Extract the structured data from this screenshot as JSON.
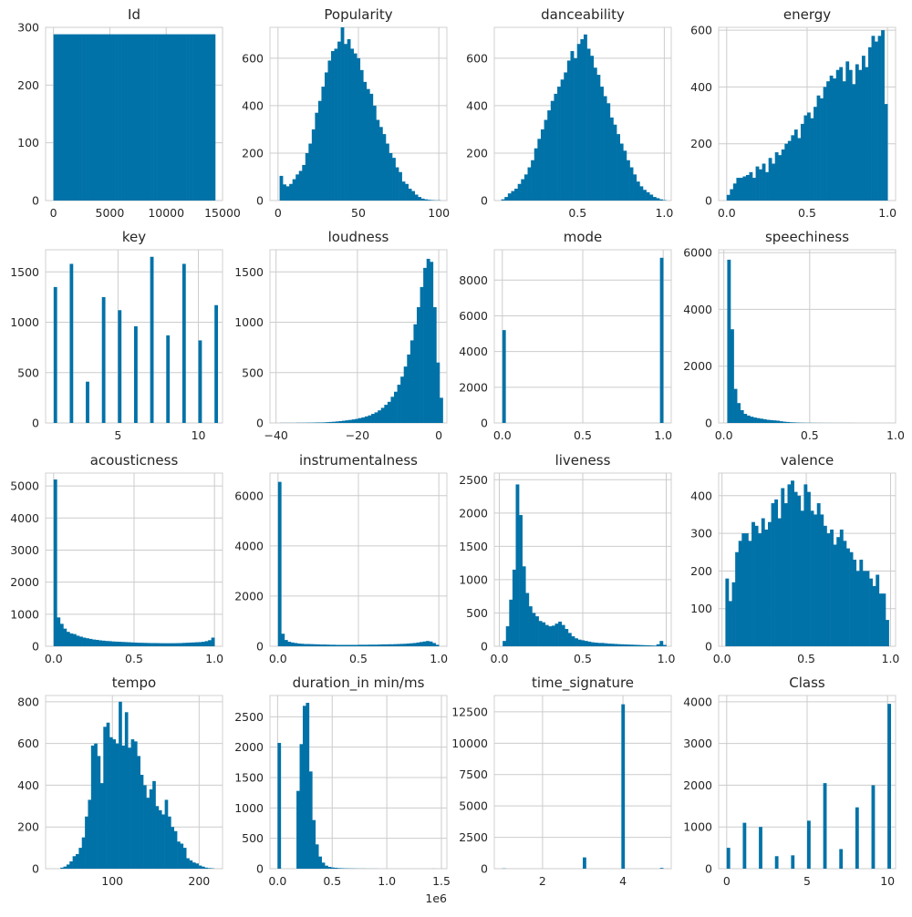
{
  "chart_data": [
    {
      "type": "bar",
      "title": "Id",
      "xlim": [
        -700,
        15000
      ],
      "ylim": [
        0,
        300
      ],
      "xticks": [
        0,
        5000,
        10000,
        15000
      ],
      "xtick_labels": [
        "0",
        "5000",
        "10000",
        "15000"
      ],
      "yticks": [
        0,
        100,
        200,
        300
      ],
      "ytick_labels": [
        "0",
        "100",
        "200",
        "300"
      ],
      "bin_start": 0,
      "bin_width": 287,
      "values": [
        288,
        288,
        288,
        288,
        288,
        288,
        288,
        288,
        288,
        288,
        288,
        288,
        288,
        288,
        288,
        288,
        288,
        288,
        288,
        288,
        288,
        288,
        288,
        288,
        288,
        288,
        288,
        288,
        288,
        288,
        288,
        288,
        288,
        288,
        288,
        288,
        288,
        288,
        288,
        288,
        288,
        288,
        288,
        288,
        288,
        288,
        288,
        288,
        288,
        288
      ]
    },
    {
      "type": "bar",
      "title": "Popularity",
      "xlim": [
        -5,
        105
      ],
      "ylim": [
        0,
        730
      ],
      "xticks": [
        0,
        50,
        100
      ],
      "xtick_labels": [
        "0",
        "50",
        "100"
      ],
      "yticks": [
        0,
        200,
        400,
        600
      ],
      "ytick_labels": [
        "0",
        "200",
        "400",
        "600"
      ],
      "bin_start": 1,
      "bin_width": 2,
      "values": [
        104,
        68,
        60,
        70,
        90,
        110,
        125,
        150,
        200,
        240,
        300,
        370,
        420,
        480,
        540,
        590,
        630,
        640,
        670,
        730,
        660,
        680,
        640,
        620,
        600,
        550,
        500,
        470,
        450,
        400,
        340,
        310,
        280,
        240,
        200,
        180,
        140,
        120,
        80,
        70,
        50,
        40,
        25,
        15,
        8,
        5,
        3,
        2,
        1,
        1
      ]
    },
    {
      "type": "bar",
      "title": "danceability",
      "xlim": [
        0.02,
        1.04
      ],
      "ylim": [
        0,
        730
      ],
      "xticks": [
        0.5,
        1.0
      ],
      "xtick_labels": [
        "0.5",
        "1.0"
      ],
      "yticks": [
        0,
        200,
        400,
        600
      ],
      "ytick_labels": [
        "0",
        "200",
        "400",
        "600"
      ],
      "bin_start": 0.06,
      "bin_width": 0.019,
      "values": [
        5,
        15,
        30,
        40,
        50,
        70,
        90,
        110,
        140,
        170,
        220,
        260,
        300,
        340,
        380,
        420,
        450,
        480,
        510,
        540,
        590,
        630,
        600,
        660,
        680,
        700,
        640,
        610,
        560,
        530,
        480,
        440,
        410,
        350,
        320,
        280,
        240,
        210,
        170,
        140,
        110,
        80,
        60,
        45,
        35,
        25,
        15,
        10,
        5,
        2
      ]
    },
    {
      "type": "bar",
      "title": "energy",
      "xlim": [
        -0.05,
        1.05
      ],
      "ylim": [
        0,
        610
      ],
      "xticks": [
        0.0,
        0.5,
        1.0
      ],
      "xtick_labels": [
        "0.0",
        "0.5",
        "1.0"
      ],
      "yticks": [
        0,
        200,
        400,
        600
      ],
      "ytick_labels": [
        "0",
        "200",
        "400",
        "600"
      ],
      "bin_start": 0.0,
      "bin_width": 0.02,
      "values": [
        20,
        40,
        60,
        80,
        80,
        85,
        90,
        100,
        80,
        120,
        110,
        130,
        100,
        150,
        130,
        170,
        160,
        180,
        200,
        210,
        230,
        250,
        220,
        270,
        300,
        310,
        290,
        330,
        370,
        360,
        400,
        420,
        440,
        430,
        460,
        470,
        420,
        490,
        460,
        410,
        480,
        460,
        510,
        470,
        540,
        580,
        560,
        580,
        600,
        340
      ]
    },
    {
      "type": "bar",
      "title": "key",
      "xlim": [
        0.5,
        11.5
      ],
      "ylim": [
        0,
        1720
      ],
      "xticks": [
        5,
        10
      ],
      "xtick_labels": [
        "5",
        "10"
      ],
      "yticks": [
        0,
        500,
        1000,
        1500
      ],
      "ytick_labels": [
        "0",
        "500",
        "1000",
        "1500"
      ],
      "bin_start": 1,
      "bin_width": 0.2,
      "values": [
        1350,
        0,
        0,
        0,
        0,
        1580,
        0,
        0,
        0,
        0,
        410,
        0,
        0,
        0,
        0,
        1250,
        0,
        0,
        0,
        0,
        1120,
        0,
        0,
        0,
        0,
        960,
        0,
        0,
        0,
        0,
        1650,
        0,
        0,
        0,
        0,
        870,
        0,
        0,
        0,
        0,
        1580,
        0,
        0,
        0,
        0,
        820,
        0,
        0,
        0,
        0,
        1170
      ]
    },
    {
      "type": "bar",
      "title": "loudness",
      "xlim": [
        -41.5,
        2
      ],
      "ylim": [
        0,
        1720
      ],
      "xticks": [
        -40,
        -20,
        0
      ],
      "xtick_labels": [
        "−40",
        "−20",
        "0"
      ],
      "yticks": [
        0,
        500,
        1000,
        1500
      ],
      "ytick_labels": [
        "0",
        "500",
        "1000",
        "1500"
      ],
      "bin_start": -39,
      "bin_width": 0.8,
      "values": [
        1,
        1,
        1,
        1,
        1,
        2,
        2,
        2,
        3,
        3,
        4,
        5,
        5,
        6,
        8,
        10,
        12,
        15,
        18,
        22,
        26,
        30,
        35,
        40,
        48,
        55,
        65,
        75,
        90,
        105,
        125,
        150,
        180,
        210,
        260,
        310,
        380,
        460,
        560,
        680,
        820,
        980,
        1150,
        1350,
        1540,
        1630,
        1600,
        1150,
        600,
        250
      ]
    },
    {
      "type": "bar",
      "title": "mode",
      "xlim": [
        -0.05,
        1.05
      ],
      "ylim": [
        0,
        9700
      ],
      "xticks": [
        0.0,
        0.5,
        1.0
      ],
      "xtick_labels": [
        "0.0",
        "0.5",
        "1.0"
      ],
      "yticks": [
        0,
        2000,
        4000,
        6000,
        8000
      ],
      "ytick_labels": [
        "0",
        "2000",
        "4000",
        "6000",
        "8000"
      ],
      "bin_start": 0.0,
      "bin_width": 0.02,
      "values": [
        5200,
        0,
        0,
        0,
        0,
        0,
        0,
        0,
        0,
        0,
        0,
        0,
        0,
        0,
        0,
        0,
        0,
        0,
        0,
        0,
        0,
        0,
        0,
        0,
        0,
        0,
        0,
        0,
        0,
        0,
        0,
        0,
        0,
        0,
        0,
        0,
        0,
        0,
        0,
        0,
        0,
        0,
        0,
        0,
        0,
        0,
        0,
        0,
        0,
        9250
      ]
    },
    {
      "type": "bar",
      "title": "speechiness",
      "xlim": [
        -0.03,
        1.0
      ],
      "ylim": [
        0,
        6100
      ],
      "xticks": [
        0.0,
        0.5,
        1.0
      ],
      "xtick_labels": [
        "0.0",
        "0.5",
        "1.0"
      ],
      "yticks": [
        0,
        2000,
        4000,
        6000
      ],
      "ytick_labels": [
        "0",
        "2000",
        "4000",
        "6000"
      ],
      "bin_start": 0.02,
      "bin_width": 0.019,
      "values": [
        5750,
        3300,
        1200,
        700,
        450,
        320,
        260,
        220,
        190,
        170,
        150,
        130,
        110,
        100,
        90,
        80,
        60,
        45,
        35,
        25,
        20,
        15,
        10,
        8,
        6,
        5,
        4,
        3,
        3,
        2,
        2,
        2,
        1,
        1,
        1,
        1,
        1,
        1,
        1,
        0,
        0,
        0,
        0,
        0,
        0,
        0,
        0,
        0,
        0,
        1
      ]
    },
    {
      "type": "bar",
      "title": "acousticness",
      "xlim": [
        -0.05,
        1.05
      ],
      "ylim": [
        0,
        5400
      ],
      "xticks": [
        0.0,
        0.5,
        1.0
      ],
      "xtick_labels": [
        "0.0",
        "0.5",
        "1.0"
      ],
      "yticks": [
        0,
        1000,
        2000,
        3000,
        4000,
        5000
      ],
      "ytick_labels": [
        "0",
        "1000",
        "2000",
        "3000",
        "4000",
        "5000"
      ],
      "bin_start": 0.0,
      "bin_width": 0.02,
      "values": [
        5200,
        900,
        700,
        550,
        450,
        400,
        380,
        330,
        300,
        270,
        250,
        230,
        210,
        200,
        185,
        175,
        165,
        160,
        150,
        145,
        140,
        135,
        130,
        125,
        120,
        115,
        110,
        108,
        105,
        102,
        100,
        100,
        98,
        96,
        95,
        95,
        95,
        96,
        98,
        100,
        105,
        110,
        115,
        120,
        125,
        130,
        140,
        160,
        190,
        270
      ]
    },
    {
      "type": "bar",
      "title": "instrumentalness",
      "xlim": [
        -0.05,
        1.05
      ],
      "ylim": [
        0,
        6900
      ],
      "xticks": [
        0.0,
        0.5,
        1.0
      ],
      "xtick_labels": [
        "0.0",
        "0.5",
        "1.0"
      ],
      "yticks": [
        0,
        2000,
        4000,
        6000
      ],
      "ytick_labels": [
        "0",
        "2000",
        "4000",
        "6000"
      ],
      "bin_start": 0.0,
      "bin_width": 0.02,
      "values": [
        6550,
        500,
        250,
        180,
        150,
        130,
        110,
        100,
        90,
        90,
        85,
        80,
        75,
        70,
        70,
        65,
        60,
        60,
        55,
        55,
        55,
        55,
        55,
        55,
        55,
        60,
        60,
        60,
        65,
        65,
        65,
        70,
        75,
        75,
        80,
        80,
        85,
        90,
        95,
        100,
        110,
        120,
        130,
        150,
        170,
        190,
        210,
        190,
        130,
        60
      ]
    },
    {
      "type": "bar",
      "title": "liveness",
      "xlim": [
        -0.03,
        1.03
      ],
      "ylim": [
        0,
        2600
      ],
      "xticks": [
        0.0,
        0.5,
        1.0
      ],
      "xtick_labels": [
        "0.0",
        "0.5",
        "1.0"
      ],
      "yticks": [
        0,
        500,
        1000,
        1500,
        2000,
        2500
      ],
      "ytick_labels": [
        "0",
        "500",
        "1000",
        "1500",
        "2000",
        "2500"
      ],
      "bin_start": 0.02,
      "bin_width": 0.0196,
      "values": [
        80,
        300,
        700,
        1150,
        2430,
        1970,
        1200,
        800,
        600,
        500,
        450,
        380,
        360,
        320,
        300,
        310,
        340,
        370,
        320,
        260,
        200,
        150,
        120,
        100,
        90,
        80,
        70,
        60,
        55,
        50,
        50,
        45,
        40,
        38,
        35,
        32,
        30,
        28,
        26,
        24,
        22,
        20,
        18,
        16,
        14,
        12,
        10,
        30,
        80,
        20
      ]
    },
    {
      "type": "bar",
      "title": "valence",
      "xlim": [
        -0.02,
        1.03
      ],
      "ylim": [
        0,
        460
      ],
      "xticks": [
        0.0,
        0.5,
        1.0
      ],
      "xtick_labels": [
        "0.0",
        "0.5",
        "1.0"
      ],
      "yticks": [
        0,
        100,
        200,
        300,
        400
      ],
      "ytick_labels": [
        "0",
        "100",
        "200",
        "300",
        "400"
      ],
      "bin_start": 0.02,
      "bin_width": 0.0194,
      "values": [
        180,
        120,
        170,
        250,
        280,
        300,
        300,
        280,
        330,
        320,
        300,
        340,
        310,
        330,
        380,
        390,
        340,
        420,
        380,
        430,
        440,
        410,
        400,
        360,
        430,
        410,
        360,
        350,
        380,
        350,
        320,
        300,
        310,
        270,
        290,
        310,
        280,
        260,
        250,
        230,
        200,
        230,
        200,
        200,
        180,
        160,
        190,
        140,
        140,
        70
      ]
    },
    {
      "type": "bar",
      "title": "tempo",
      "xlim": [
        23,
        227
      ],
      "ylim": [
        0,
        830
      ],
      "xticks": [
        100,
        200
      ],
      "xtick_labels": [
        "100",
        "200"
      ],
      "yticks": [
        0,
        200,
        400,
        600,
        800
      ],
      "ytick_labels": [
        "0",
        "200",
        "400",
        "600",
        "800"
      ],
      "bin_start": 40,
      "bin_width": 3.54,
      "values": [
        5,
        10,
        20,
        35,
        60,
        70,
        100,
        150,
        250,
        330,
        590,
        600,
        540,
        410,
        680,
        700,
        630,
        620,
        600,
        800,
        590,
        750,
        580,
        620,
        610,
        540,
        450,
        400,
        340,
        380,
        420,
        300,
        280,
        260,
        330,
        250,
        200,
        180,
        130,
        120,
        100,
        50,
        40,
        30,
        25,
        15,
        10,
        5,
        3,
        2
      ]
    },
    {
      "type": "bar",
      "title": "duration_in min/ms",
      "xlim": [
        -0.07,
        1.55
      ],
      "ylim": [
        0,
        2850
      ],
      "xticks": [
        0.0,
        0.5,
        1.0,
        1.5
      ],
      "xtick_labels": [
        "0.0",
        "0.5",
        "1.0",
        "1.5"
      ],
      "yticks": [
        0,
        500,
        1000,
        1500,
        2000,
        2500
      ],
      "ytick_labels": [
        "0",
        "500",
        "1000",
        "1500",
        "2000",
        "2500"
      ],
      "offset_label": "1e6",
      "bin_start": 0.0,
      "bin_width": 0.0288,
      "values": [
        2070,
        0,
        0,
        0,
        0,
        0,
        1280,
        2050,
        2680,
        2730,
        1600,
        800,
        400,
        200,
        100,
        50,
        30,
        20,
        15,
        10,
        8,
        6,
        5,
        4,
        3,
        2,
        2,
        2,
        1,
        1,
        1,
        1,
        0,
        0,
        0,
        0,
        0,
        0,
        0,
        0,
        0,
        0,
        0,
        0,
        0,
        0,
        0,
        0,
        0,
        1
      ]
    },
    {
      "type": "bar",
      "title": "time_signature",
      "xlim": [
        0.8,
        5.2
      ],
      "ylim": [
        0,
        13800
      ],
      "xticks": [
        2,
        4
      ],
      "xtick_labels": [
        "2",
        "4"
      ],
      "yticks": [
        0,
        2500,
        5000,
        7500,
        10000,
        12500
      ],
      "ytick_labels": [
        "0",
        "2500",
        "5000",
        "7500",
        "10000",
        "12500"
      ],
      "bin_start": 1,
      "bin_width": 0.08,
      "values": [
        20,
        0,
        0,
        0,
        0,
        0,
        0,
        0,
        0,
        0,
        0,
        0,
        0,
        0,
        0,
        0,
        0,
        0,
        0,
        0,
        0,
        0,
        0,
        0,
        0,
        900,
        0,
        0,
        0,
        0,
        0,
        0,
        0,
        0,
        0,
        0,
        0,
        13100,
        0,
        0,
        0,
        0,
        0,
        0,
        0,
        0,
        0,
        0,
        0,
        60
      ]
    },
    {
      "type": "bar",
      "title": "Class",
      "xlim": [
        -0.5,
        10.5
      ],
      "ylim": [
        0,
        4150
      ],
      "xticks": [
        0,
        5,
        10
      ],
      "xtick_labels": [
        "0",
        "5",
        "10"
      ],
      "yticks": [
        0,
        1000,
        2000,
        3000,
        4000
      ],
      "ytick_labels": [
        "0",
        "1000",
        "2000",
        "3000",
        "4000"
      ],
      "bin_start": 0,
      "bin_width": 0.2,
      "values": [
        500,
        0,
        0,
        0,
        0,
        1100,
        0,
        0,
        0,
        0,
        1000,
        0,
        0,
        0,
        0,
        300,
        0,
        0,
        0,
        0,
        320,
        0,
        0,
        0,
        0,
        1150,
        0,
        0,
        0,
        0,
        2050,
        0,
        0,
        0,
        0,
        470,
        0,
        0,
        0,
        0,
        1470,
        0,
        0,
        0,
        0,
        2000,
        0,
        0,
        0,
        0,
        3950
      ]
    }
  ]
}
